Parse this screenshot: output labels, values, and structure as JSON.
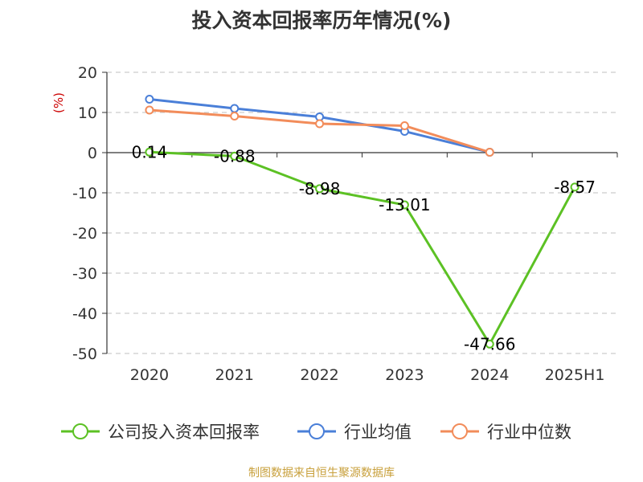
{
  "chart_data": {
    "type": "line",
    "title": "投入资本回报率历年情况(%)",
    "ylabel": "(%)",
    "xlabel": "",
    "categories": [
      "2020",
      "2021",
      "2022",
      "2023",
      "2024",
      "2025H1"
    ],
    "ylim": [
      -50,
      20
    ],
    "yticks": [
      20,
      10,
      0,
      -10,
      -20,
      -30,
      -40,
      -50
    ],
    "grid": true,
    "legend_position": "bottom",
    "series": [
      {
        "name": "公司投入资本回报率",
        "color": "#5cc124",
        "values": [
          0.14,
          -0.88,
          -8.98,
          -13.01,
          -47.66,
          -8.57
        ],
        "labels": [
          "0.14",
          "-0.88",
          "-8.98",
          "-13.01",
          "-47.66",
          "-8.57"
        ]
      },
      {
        "name": "行业均值",
        "color": "#4a7fd8",
        "values": [
          13.3,
          11.0,
          8.9,
          5.3,
          0.1,
          null
        ]
      },
      {
        "name": "行业中位数",
        "color": "#f28c5a",
        "values": [
          10.6,
          9.1,
          7.2,
          6.7,
          0.1,
          null
        ]
      }
    ]
  },
  "source": {
    "text": "制图数据来自恒生聚源数据库",
    "color": "#c8a03c"
  },
  "colors": {
    "ylabel": "#cc0000",
    "axis": "#333333",
    "grid": "#cccccc"
  }
}
